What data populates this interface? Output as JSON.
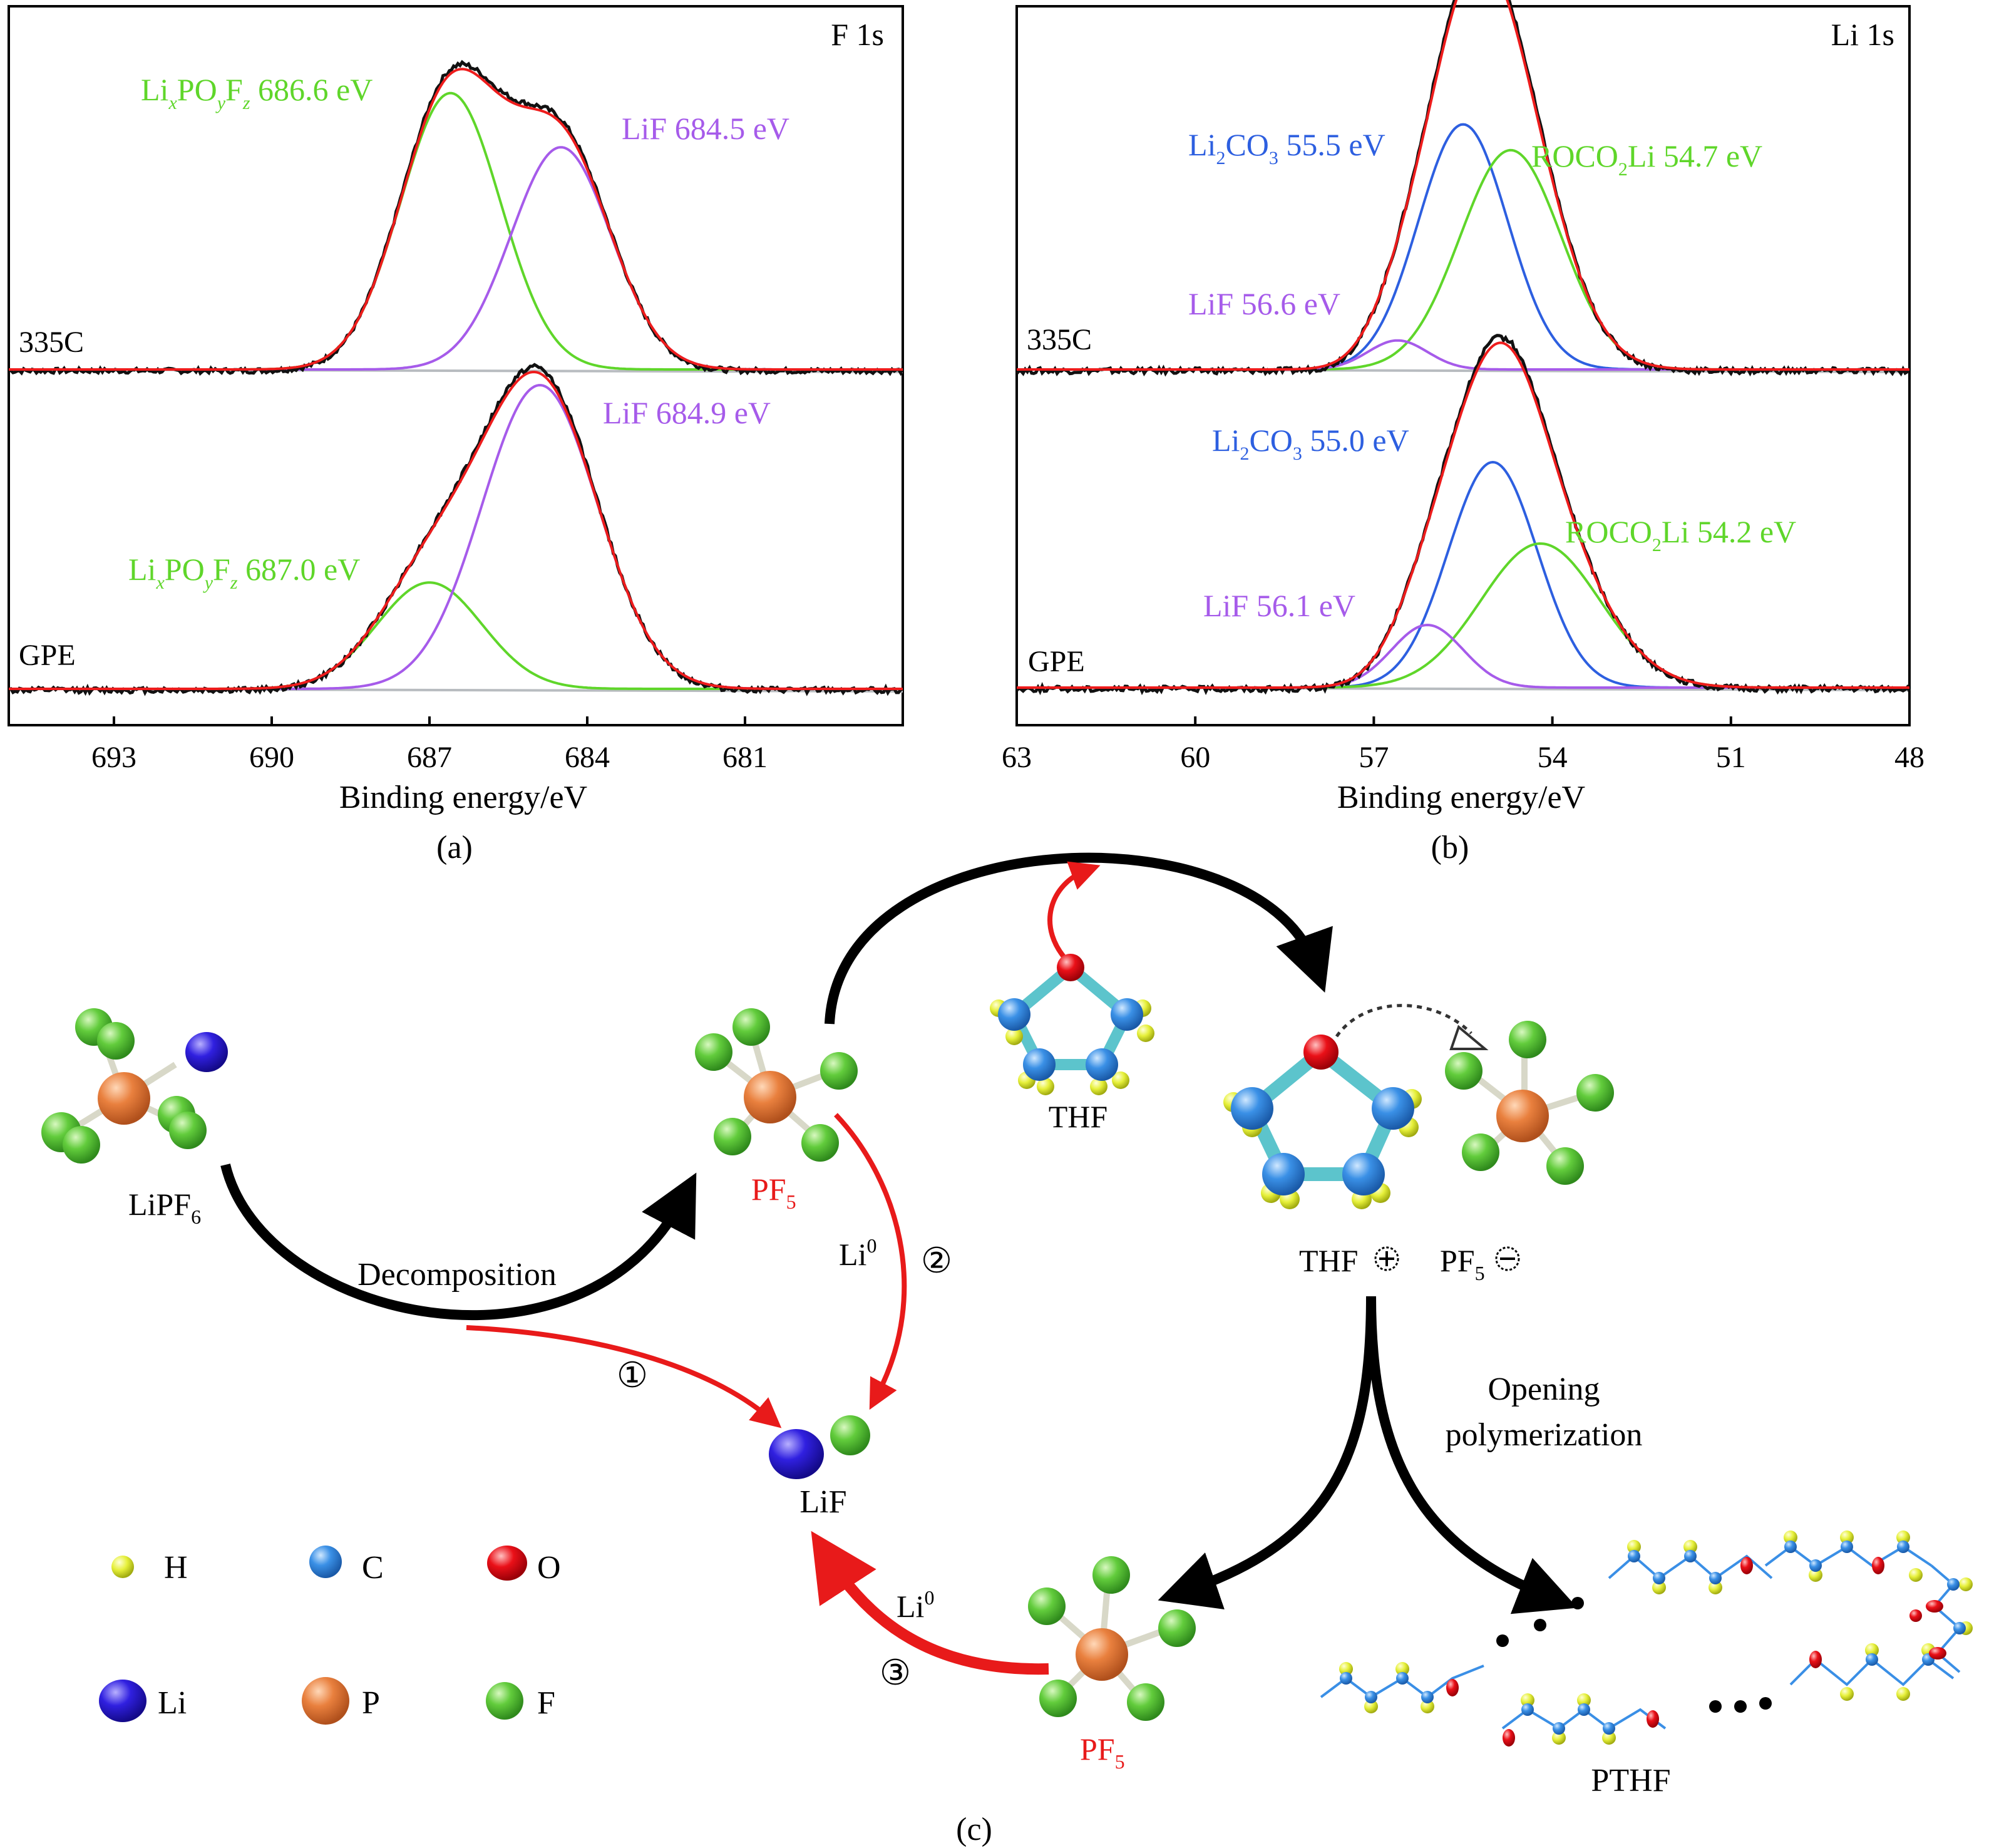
{
  "colors": {
    "raw": "#111111",
    "fit": "#ee1c1c",
    "green": "#5fd62a",
    "purple": "#a65bea",
    "blue": "#2d5fe0",
    "baseline": "#b8bcc0",
    "red": "#e81a1a",
    "teal": "#5cc4cc"
  },
  "chart_data": [
    {
      "id": "a",
      "type": "line",
      "panel_title": "F 1s",
      "xlabel": "Binding energy/eV",
      "caption": "(a)",
      "xlim": [
        695,
        678
      ],
      "x_reversed": true,
      "xticks": [
        693,
        690,
        687,
        684,
        681
      ],
      "samples": [
        {
          "name": "335C",
          "components": [
            {
              "label": "Li",
              "sub1": "x",
              "mid": "PO",
              "sub2": "y",
              "mid2": "F",
              "sub3": "z",
              "value": "686.6 eV",
              "color": "green",
              "center": 686.6,
              "height": 0.97,
              "sigma": 0.95
            },
            {
              "label": "LiF 684.5 eV",
              "color": "purple",
              "center": 684.5,
              "height": 0.78,
              "sigma": 0.95
            }
          ]
        },
        {
          "name": "GPE",
          "components": [
            {
              "label": "Li",
              "sub1": "x",
              "mid": "PO",
              "sub2": "y",
              "mid2": "F",
              "sub3": "z",
              "value": "687.0 eV",
              "color": "green",
              "center": 687.0,
              "height": 0.35,
              "sigma": 1.0
            },
            {
              "label": "LiF 684.9 eV",
              "color": "purple",
              "center": 684.9,
              "height": 1.0,
              "sigma": 1.1
            }
          ]
        }
      ]
    },
    {
      "id": "b",
      "type": "line",
      "panel_title": "Li 1s",
      "xlabel": "Binding energy/eV",
      "caption": "(b)",
      "xlim": [
        63,
        48
      ],
      "x_reversed": true,
      "xticks": [
        63,
        60,
        57,
        54,
        51,
        48
      ],
      "samples": [
        {
          "name": "335C",
          "components": [
            {
              "label": "Li",
              "sub1": "2",
              "mid": "CO",
              "sub2": "3",
              "value": "55.5 eV",
              "color": "blue",
              "center": 55.5,
              "height": 0.76,
              "sigma": 0.75
            },
            {
              "label": "ROCO",
              "sub1": "2",
              "mid": "Li 54.7 eV",
              "color": "green",
              "center": 54.7,
              "height": 0.68,
              "sigma": 0.85
            },
            {
              "label": "LiF 56.6 eV",
              "color": "purple",
              "center": 56.6,
              "height": 0.09,
              "sigma": 0.5
            }
          ]
        },
        {
          "name": "GPE",
          "components": [
            {
              "label": "Li",
              "sub1": "2",
              "mid": "CO",
              "sub2": "3",
              "value": "55.0 eV",
              "color": "blue",
              "center": 55.0,
              "height": 0.72,
              "sigma": 0.75
            },
            {
              "label": "ROCO",
              "sub1": "2",
              "mid": "Li 54.2 eV",
              "color": "green",
              "center": 54.2,
              "height": 0.46,
              "sigma": 1.0
            },
            {
              "label": "LiF 56.1 eV",
              "color": "purple",
              "center": 56.1,
              "height": 0.2,
              "sigma": 0.6
            }
          ]
        }
      ]
    }
  ],
  "scheme": {
    "caption": "(c)",
    "lipf6": "LiPF",
    "lipf6_sub": "6",
    "pf5": "PF",
    "pf5_sub": "5",
    "decomposition": "Decomposition",
    "thf": "THF",
    "thf_plus": "THF",
    "pf5_minus": "PF",
    "li0": "Li",
    "li0_sup": "0",
    "lif": "LiF",
    "step1": "①",
    "step2": "②",
    "step3": "③",
    "opening_1": "Opening",
    "opening_2": "polymerization",
    "pthf": "PTHF",
    "legend": [
      {
        "symbol": "H",
        "color": "#e8f23a"
      },
      {
        "symbol": "C",
        "color": "#3a8fe6"
      },
      {
        "symbol": "O",
        "color": "#e8101a"
      },
      {
        "symbol": "Li",
        "color": "#2a1ed6"
      },
      {
        "symbol": "P",
        "color": "#e88040"
      },
      {
        "symbol": "F",
        "color": "#5cc83a"
      }
    ]
  }
}
